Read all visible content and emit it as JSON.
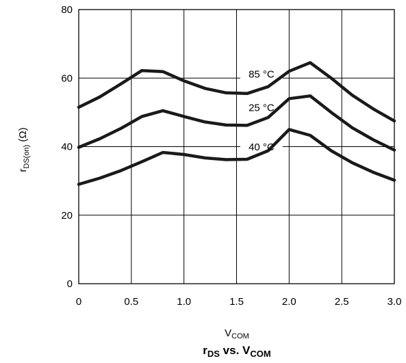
{
  "chart_data": {
    "type": "line",
    "title": {
      "main": "r",
      "main_sub": "DS",
      "mid": " vs. V",
      "end_sub": "COM"
    },
    "xlabel": {
      "main": "V",
      "sub": "COM"
    },
    "ylabel": {
      "main": "r",
      "sub": "DS(on)",
      "unit": "(Ω)"
    },
    "xlim": [
      0,
      3.0
    ],
    "ylim": [
      0,
      80
    ],
    "x_ticks": [
      "0",
      "0.5",
      "1.0",
      "1.5",
      "2.0",
      "2.5",
      "3.0"
    ],
    "y_ticks": [
      "0",
      "20",
      "40",
      "60",
      "80"
    ],
    "grid": true,
    "x": [
      0,
      0.2,
      0.4,
      0.6,
      0.8,
      1.0,
      1.2,
      1.4,
      1.6,
      1.8,
      2.0,
      2.2,
      2.4,
      2.6,
      2.8,
      3.0
    ],
    "series": [
      {
        "name": "85 °C",
        "values": [
          51.5,
          54.5,
          58.3,
          62.2,
          61.9,
          59.2,
          57.0,
          55.7,
          55.5,
          57.5,
          62.0,
          64.5,
          60.0,
          55.0,
          51.0,
          47.5
        ]
      },
      {
        "name": "25 °C",
        "values": [
          39.8,
          42.3,
          45.3,
          48.8,
          50.5,
          48.8,
          47.2,
          46.3,
          46.2,
          48.5,
          54.0,
          54.8,
          50.0,
          45.5,
          42.0,
          39.0
        ]
      },
      {
        "name": "40 °C",
        "values": [
          29.0,
          30.8,
          33.0,
          35.6,
          38.3,
          37.7,
          36.7,
          36.2,
          36.3,
          38.8,
          45.0,
          43.3,
          38.8,
          35.3,
          32.5,
          30.2
        ]
      }
    ],
    "colors": {
      "line": "#1a1a1a",
      "grid": "#000000"
    }
  }
}
